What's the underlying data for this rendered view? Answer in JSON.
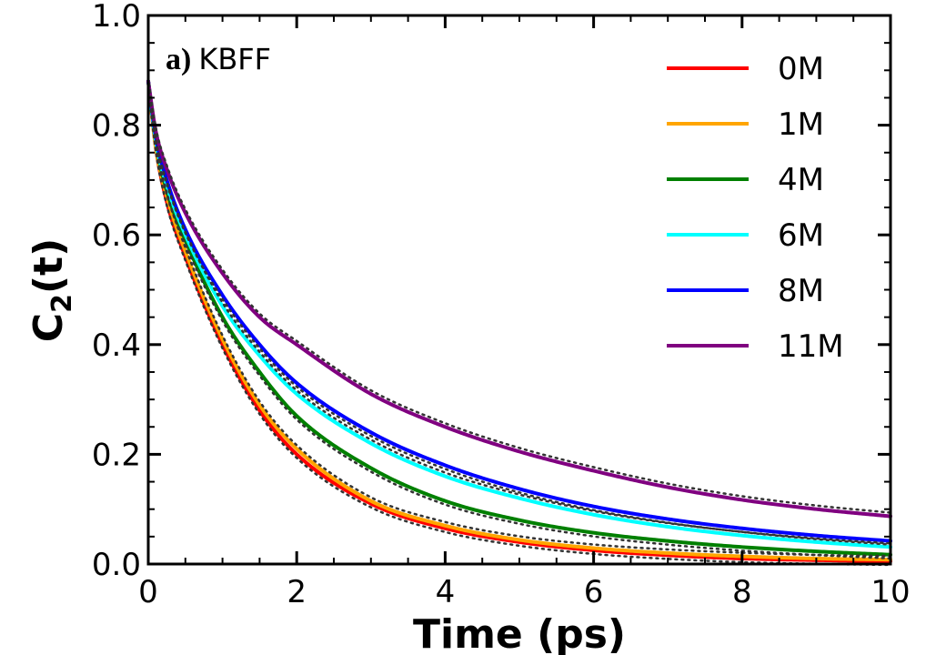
{
  "chart_data": {
    "type": "line",
    "title": "",
    "panel_label_prefix": "a)",
    "panel_label_name": "KBFF",
    "xlabel": "Time (ps)",
    "ylabel_main": "C",
    "ylabel_sub": "2",
    "ylabel_rest": "(t)",
    "xlim": [
      0,
      10
    ],
    "ylim": [
      0,
      1.0
    ],
    "xticks": [
      0,
      2,
      4,
      6,
      8,
      10
    ],
    "xtick_labels": [
      "0",
      "2",
      "4",
      "6",
      "8",
      "10"
    ],
    "yticks": [
      0,
      0.2,
      0.4,
      0.6,
      0.8,
      1.0
    ],
    "ytick_labels": [
      "0.0",
      "0.2",
      "0.4",
      "0.6",
      "0.8",
      "1.0"
    ],
    "grid": false,
    "legend_position": "top-right",
    "fit_line_style": "dotted",
    "fit_line_color": "#333333",
    "x": [
      0,
      0.1,
      0.25,
      0.5,
      1,
      1.5,
      2,
      3,
      4,
      5,
      6,
      7,
      8,
      9,
      10
    ],
    "series": [
      {
        "name": "0M",
        "color": "#ff0000",
        "values": [
          0.88,
          0.76,
          0.66,
          0.56,
          0.4,
          0.28,
          0.2,
          0.11,
          0.065,
          0.04,
          0.025,
          0.016,
          0.01,
          0.007,
          0.005
        ]
      },
      {
        "name": "1M",
        "color": "#ffa500",
        "values": [
          0.88,
          0.76,
          0.67,
          0.57,
          0.41,
          0.29,
          0.21,
          0.115,
          0.07,
          0.044,
          0.029,
          0.02,
          0.014,
          0.01,
          0.008
        ]
      },
      {
        "name": "4M",
        "color": "#008000",
        "values": [
          0.88,
          0.77,
          0.68,
          0.59,
          0.45,
          0.35,
          0.27,
          0.175,
          0.115,
          0.08,
          0.057,
          0.042,
          0.031,
          0.023,
          0.017
        ]
      },
      {
        "name": "6M",
        "color": "#00ffff",
        "values": [
          0.88,
          0.77,
          0.69,
          0.6,
          0.47,
          0.38,
          0.31,
          0.22,
          0.16,
          0.12,
          0.09,
          0.068,
          0.052,
          0.04,
          0.031
        ]
      },
      {
        "name": "8M",
        "color": "#0000ff",
        "values": [
          0.88,
          0.78,
          0.7,
          0.61,
          0.49,
          0.4,
          0.33,
          0.24,
          0.18,
          0.137,
          0.105,
          0.082,
          0.065,
          0.052,
          0.042
        ]
      },
      {
        "name": "11M",
        "color": "#800080",
        "values": [
          0.88,
          0.79,
          0.72,
          0.64,
          0.53,
          0.45,
          0.4,
          0.31,
          0.25,
          0.205,
          0.17,
          0.14,
          0.117,
          0.1,
          0.087
        ]
      }
    ]
  }
}
